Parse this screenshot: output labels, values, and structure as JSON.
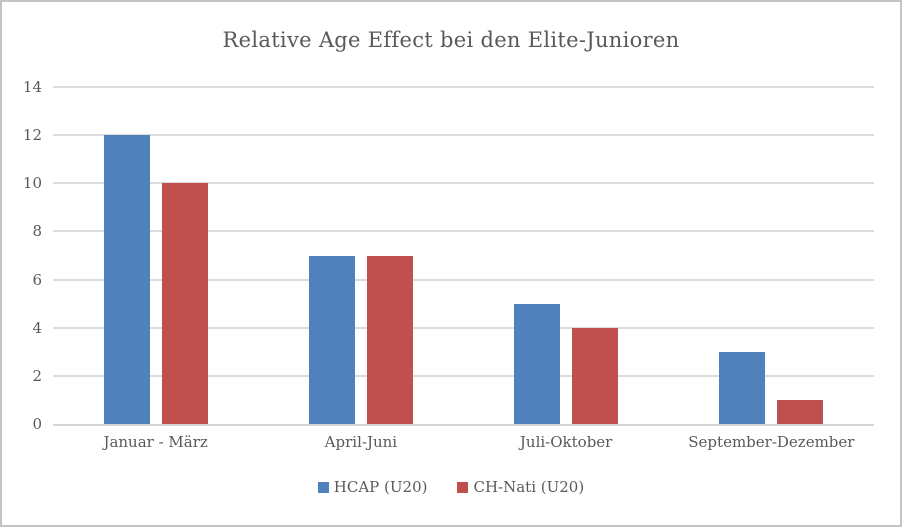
{
  "window": {
    "background": "#ffffff",
    "frame_color": "#c3c3c3"
  },
  "styles": {
    "text_color": "#595959",
    "gridline_color": "#dcdcdc",
    "axis_line_color": "#d6d6d6"
  },
  "chart_data": {
    "type": "bar",
    "title": "Relative Age Effect bei den Elite-Junioren",
    "categories": [
      "Januar - März",
      "April-Juni",
      "Juli-Oktober",
      "September-Dezember"
    ],
    "series": [
      {
        "name": "HCAP (U20)",
        "color": "#4F81BD",
        "values": [
          12,
          7,
          5,
          3
        ]
      },
      {
        "name": "CH-Nati (U20)",
        "color": "#C0504D",
        "values": [
          10,
          7,
          4,
          1
        ]
      }
    ],
    "xlabel": "",
    "ylabel": "",
    "ylim": [
      0,
      14
    ],
    "yticks": [
      0,
      2,
      4,
      6,
      8,
      10,
      12,
      14
    ],
    "grid": true,
    "legend_position": "bottom"
  }
}
